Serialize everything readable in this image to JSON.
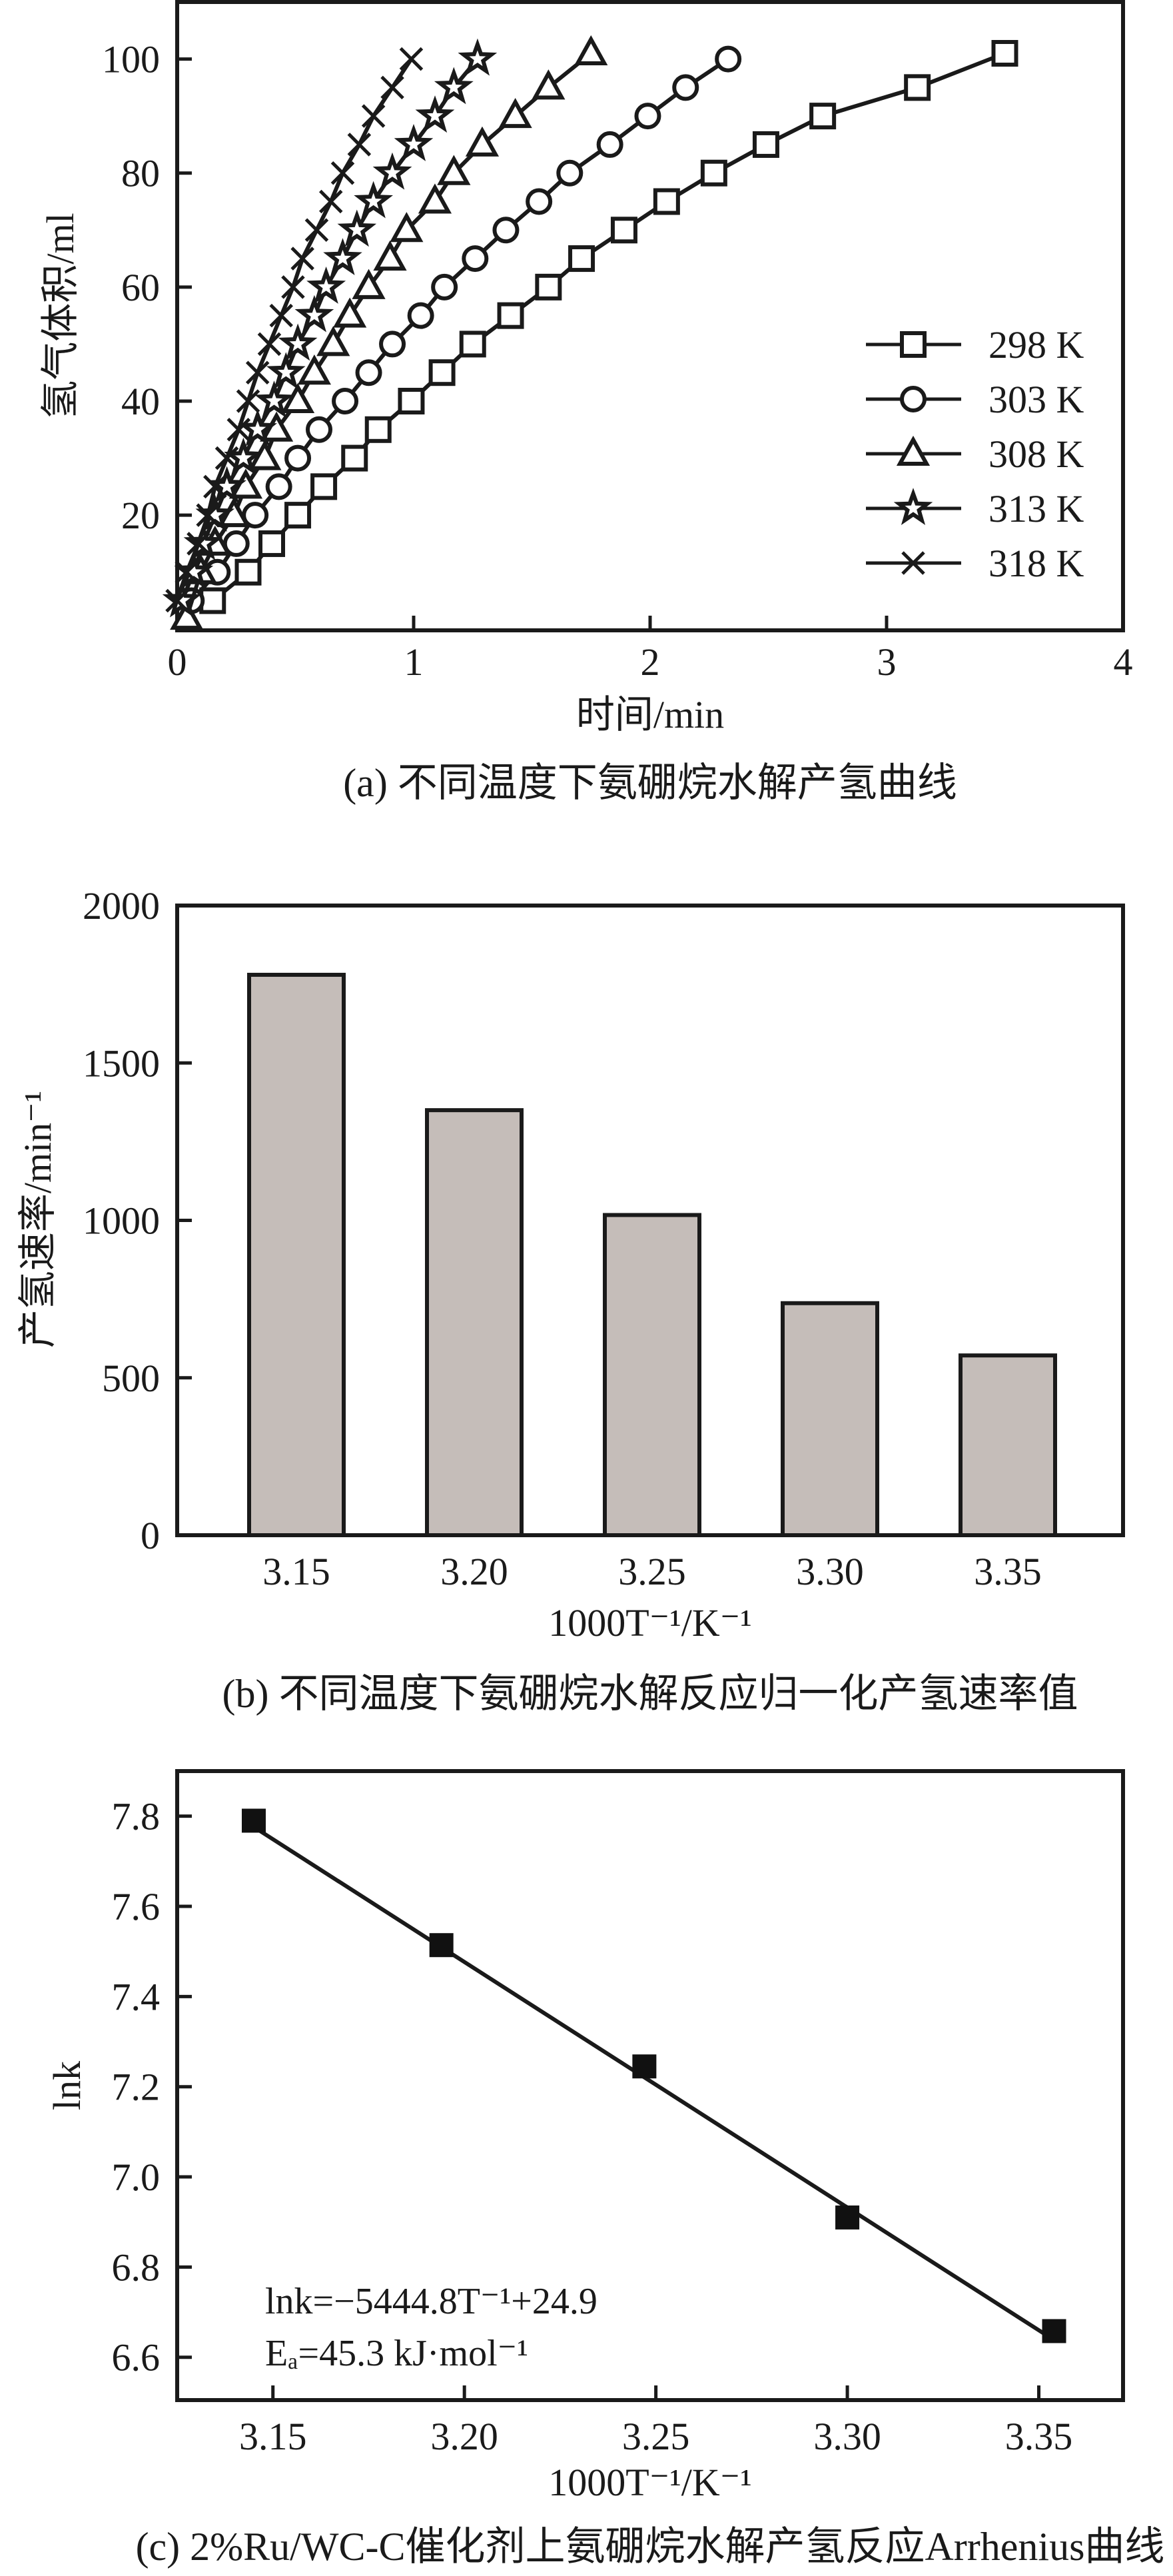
{
  "chart_data": [
    {
      "type": "line",
      "caption": "(a) 不同温度下氨硼烷水解产氢曲线",
      "xlabel": "时间/min",
      "ylabel": "氢气体积/ml",
      "xlim": [
        0,
        4
      ],
      "ylim": [
        -0.2,
        110
      ],
      "xticks": [
        "0",
        "1",
        "2",
        "3",
        "4"
      ],
      "yticks": [
        "20",
        "40",
        "60",
        "80",
        "100"
      ],
      "grid": false,
      "legend_position": "bottom-right",
      "series": [
        {
          "name": "298 K",
          "marker": "square",
          "x": [
            0.15,
            0.3,
            0.4,
            0.51,
            0.62,
            0.75,
            0.85,
            0.99,
            1.12,
            1.25,
            1.41,
            1.57,
            1.71,
            1.89,
            2.07,
            2.27,
            2.49,
            2.73,
            3.13,
            3.5
          ],
          "y": [
            5,
            10,
            15,
            20,
            25,
            30,
            35,
            40,
            45,
            50,
            55,
            60,
            65,
            70,
            75,
            80,
            85,
            90,
            95,
            101
          ]
        },
        {
          "name": "303 K",
          "marker": "circle",
          "x": [
            0.06,
            0.17,
            0.25,
            0.33,
            0.43,
            0.51,
            0.6,
            0.71,
            0.81,
            0.91,
            1.03,
            1.13,
            1.26,
            1.39,
            1.53,
            1.66,
            1.83,
            1.99,
            2.15,
            2.33
          ],
          "y": [
            5,
            10,
            15,
            20,
            25,
            30,
            35,
            40,
            45,
            50,
            55,
            60,
            65,
            70,
            75,
            80,
            85,
            90,
            95,
            100
          ]
        },
        {
          "name": "308 K",
          "marker": "triangle",
          "x": [
            0.04,
            0.1,
            0.16,
            0.24,
            0.29,
            0.37,
            0.42,
            0.51,
            0.58,
            0.66,
            0.73,
            0.81,
            0.9,
            0.97,
            1.09,
            1.17,
            1.29,
            1.43,
            1.57,
            1.75
          ],
          "y": [
            2,
            10,
            15,
            20,
            25,
            30,
            35,
            40,
            45,
            50,
            55,
            60,
            65,
            70,
            75,
            80,
            85,
            90,
            95,
            101
          ]
        },
        {
          "name": "313 K",
          "marker": "star",
          "x": [
            0.02,
            0.07,
            0.11,
            0.16,
            0.21,
            0.28,
            0.34,
            0.41,
            0.46,
            0.51,
            0.58,
            0.63,
            0.7,
            0.76,
            0.83,
            0.91,
            1.0,
            1.09,
            1.17,
            1.27
          ],
          "y": [
            5,
            10,
            15,
            20,
            25,
            30,
            35,
            40,
            45,
            50,
            55,
            60,
            65,
            70,
            75,
            80,
            85,
            90,
            95,
            100
          ]
        },
        {
          "name": "318 K",
          "marker": "cross",
          "x": [
            0.0,
            0.04,
            0.09,
            0.13,
            0.16,
            0.21,
            0.26,
            0.3,
            0.34,
            0.39,
            0.44,
            0.49,
            0.53,
            0.59,
            0.65,
            0.7,
            0.77,
            0.83,
            0.91,
            0.99
          ],
          "y": [
            5,
            10,
            15,
            20,
            25,
            30,
            35,
            40,
            45,
            50,
            55,
            60,
            65,
            70,
            75,
            80,
            85,
            90,
            95,
            100
          ]
        }
      ]
    },
    {
      "type": "bar",
      "caption": "(b) 不同温度下氨硼烷水解反应归一化产氢速率值",
      "xlabel": "1000T⁻¹/K⁻¹",
      "ylabel": "产氢速率/min⁻¹",
      "categories": [
        "3.15",
        "3.20",
        "3.25",
        "3.30",
        "3.35"
      ],
      "values": [
        1780,
        1350,
        1017,
        737,
        571
      ],
      "ylim": [
        0,
        2000
      ],
      "yticks": [
        "0",
        "500",
        "1000",
        "1500",
        "2000"
      ],
      "bar_color": "#c5bdb9",
      "grid": false
    },
    {
      "type": "scatter",
      "caption": "(c) 2%Ru/WC-C催化剂上氨硼烷水解产氢反应Arrhenius曲线",
      "xlabel": "1000T⁻¹/K⁻¹",
      "ylabel": "lnk",
      "xlim": [
        3.125,
        3.372
      ],
      "ylim": [
        6.505,
        7.9
      ],
      "xticks": [
        "3.15",
        "3.20",
        "3.25",
        "3.30",
        "3.35"
      ],
      "yticks": [
        "6.6",
        "6.8",
        "7.0",
        "7.2",
        "7.4",
        "7.6",
        "7.8"
      ],
      "points": {
        "x": [
          3.145,
          3.194,
          3.247,
          3.3,
          3.354
        ],
        "y": [
          7.79,
          7.514,
          7.245,
          6.91,
          6.658
        ]
      },
      "fit": {
        "slope": -5.4448,
        "intercept": 24.9
      },
      "annotations": [
        "lnk=−5444.8T⁻¹+24.9",
        "Eₐ=45.3 kJ·mol⁻¹"
      ],
      "grid": false
    }
  ]
}
